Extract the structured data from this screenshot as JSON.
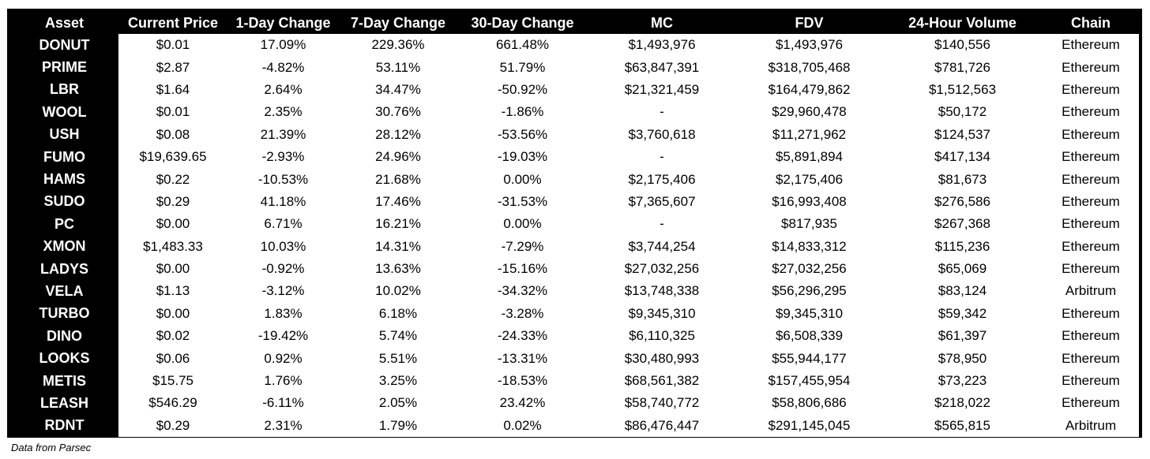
{
  "columns": [
    "Asset",
    "Current Price",
    "1-Day Change",
    "7-Day Change",
    "30-Day Change",
    "MC",
    "FDV",
    "24-Hour Volume",
    "Chain"
  ],
  "rows": [
    [
      "DONUT",
      "$0.01",
      "17.09%",
      "229.36%",
      "661.48%",
      "$1,493,976",
      "$1,493,976",
      "$140,556",
      "Ethereum"
    ],
    [
      "PRIME",
      "$2.87",
      "-4.82%",
      "53.11%",
      "51.79%",
      "$63,847,391",
      "$318,705,468",
      "$781,726",
      "Ethereum"
    ],
    [
      "LBR",
      "$1.64",
      "2.64%",
      "34.47%",
      "-50.92%",
      "$21,321,459",
      "$164,479,862",
      "$1,512,563",
      "Ethereum"
    ],
    [
      "WOOL",
      "$0.01",
      "2.35%",
      "30.76%",
      "-1.86%",
      "-",
      "$29,960,478",
      "$50,172",
      "Ethereum"
    ],
    [
      "USH",
      "$0.08",
      "21.39%",
      "28.12%",
      "-53.56%",
      "$3,760,618",
      "$11,271,962",
      "$124,537",
      "Ethereum"
    ],
    [
      "FUMO",
      "$19,639.65",
      "-2.93%",
      "24.96%",
      "-19.03%",
      "-",
      "$5,891,894",
      "$417,134",
      "Ethereum"
    ],
    [
      "HAMS",
      "$0.22",
      "-10.53%",
      "21.68%",
      "0.00%",
      "$2,175,406",
      "$2,175,406",
      "$81,673",
      "Ethereum"
    ],
    [
      "SUDO",
      "$0.29",
      "41.18%",
      "17.46%",
      "-31.53%",
      "$7,365,607",
      "$16,993,408",
      "$276,586",
      "Ethereum"
    ],
    [
      "PC",
      "$0.00",
      "6.71%",
      "16.21%",
      "0.00%",
      "-",
      "$817,935",
      "$267,368",
      "Ethereum"
    ],
    [
      "XMON",
      "$1,483.33",
      "10.03%",
      "14.31%",
      "-7.29%",
      "$3,744,254",
      "$14,833,312",
      "$115,236",
      "Ethereum"
    ],
    [
      "LADYS",
      "$0.00",
      "-0.92%",
      "13.63%",
      "-15.16%",
      "$27,032,256",
      "$27,032,256",
      "$65,069",
      "Ethereum"
    ],
    [
      "VELA",
      "$1.13",
      "-3.12%",
      "10.02%",
      "-34.32%",
      "$13,748,338",
      "$56,296,295",
      "$83,124",
      "Arbitrum"
    ],
    [
      "TURBO",
      "$0.00",
      "1.83%",
      "6.18%",
      "-3.28%",
      "$9,345,310",
      "$9,345,310",
      "$59,342",
      "Ethereum"
    ],
    [
      "DINO",
      "$0.02",
      "-19.42%",
      "5.74%",
      "-24.33%",
      "$6,110,325",
      "$6,508,339",
      "$61,397",
      "Ethereum"
    ],
    [
      "LOOKS",
      "$0.06",
      "0.92%",
      "5.51%",
      "-13.31%",
      "$30,480,993",
      "$55,944,177",
      "$78,950",
      "Ethereum"
    ],
    [
      "METIS",
      "$15.75",
      "1.76%",
      "3.25%",
      "-18.53%",
      "$68,561,382",
      "$157,455,954",
      "$73,223",
      "Ethereum"
    ],
    [
      "LEASH",
      "$546.29",
      "-6.11%",
      "2.05%",
      "23.42%",
      "$58,740,772",
      "$58,806,686",
      "$218,022",
      "Ethereum"
    ],
    [
      "RDNT",
      "$0.29",
      "2.31%",
      "1.79%",
      "0.02%",
      "$86,476,447",
      "$291,145,045",
      "$565,815",
      "Arbitrum"
    ]
  ],
  "footer": "Data from Parsec"
}
